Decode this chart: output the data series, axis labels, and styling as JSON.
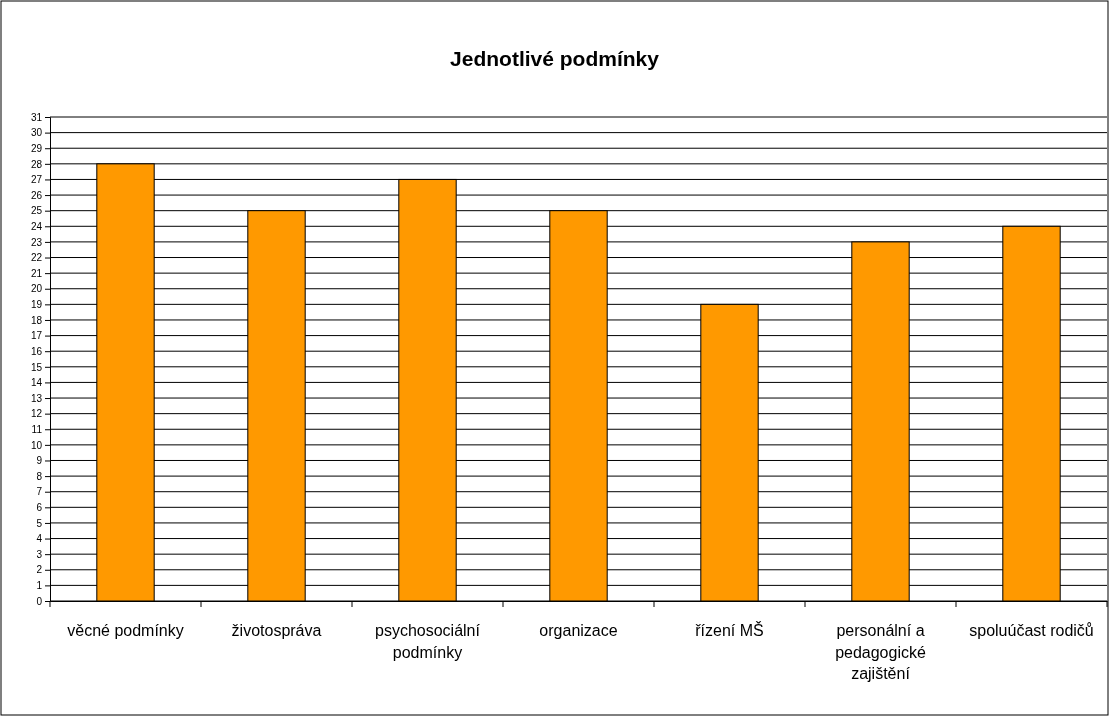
{
  "chart_data": {
    "type": "bar",
    "title": "Jednotlivé podmínky",
    "categories": [
      "věcné podmínky",
      "životospráva",
      "psychosociální podmínky",
      "organizace",
      "řízení MŠ",
      "personální a pedagogické zajištění",
      "spoluúčast rodičů"
    ],
    "values": [
      28,
      25,
      27,
      25,
      19,
      23,
      24
    ],
    "color": "#ff9900",
    "ylim": [
      0,
      31
    ],
    "yticks": [
      0,
      1,
      2,
      3,
      4,
      5,
      6,
      7,
      8,
      9,
      10,
      11,
      12,
      13,
      14,
      15,
      16,
      17,
      18,
      19,
      20,
      21,
      22,
      23,
      24,
      25,
      26,
      27,
      28,
      29,
      30,
      31
    ],
    "grid": "y"
  }
}
